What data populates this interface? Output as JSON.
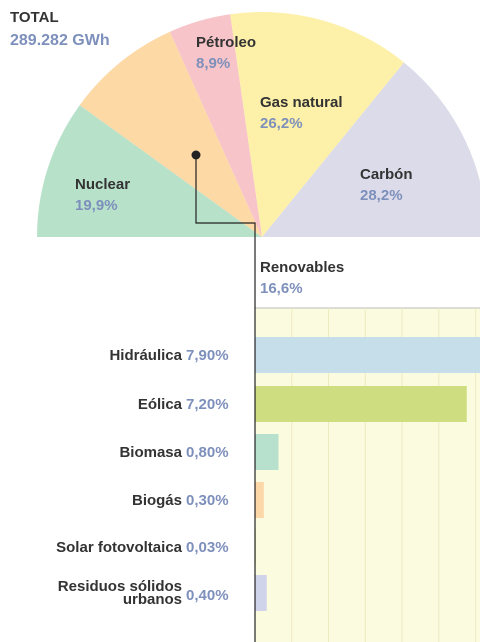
{
  "chart_data": [
    {
      "type": "pie",
      "title": "TOTAL",
      "subtitle": "289.282 GWh",
      "categories": [
        "Nuclear",
        "Renovables",
        "Pétroleo",
        "Gas natural",
        "Carbón"
      ],
      "values": [
        19.9,
        16.6,
        8.9,
        26.2,
        28.2
      ],
      "value_labels": [
        "19,9%",
        "16,6%",
        "8,9%",
        "26,2%",
        "28,2%"
      ],
      "colors": [
        "#b8e1ca",
        "#fdd9a6",
        "#f7c5c9",
        "#fdf0a8",
        "#dcdbe9"
      ]
    },
    {
      "type": "bar",
      "categories": [
        "Hidráulica",
        "Eólica",
        "Biomasa",
        "Biogás",
        "Solar fotovoltaica",
        "Residuos sólidos urbanos"
      ],
      "values": [
        7.9,
        7.2,
        0.8,
        0.3,
        0.03,
        0.4
      ],
      "value_labels": [
        "7,90%",
        "7,20%",
        "0,80%",
        "0,30%",
        "0,03%",
        "0,40%"
      ],
      "colors": [
        "#c6ddea",
        "#cddd80",
        "#b7e1cd",
        "#fcd7a8",
        "#e4e6a0",
        "#d0d4ea"
      ],
      "xlim": [
        0,
        7.65
      ],
      "xticks": [
        0,
        1.25,
        2.5,
        3.75,
        5,
        6.25,
        7.5
      ],
      "grid": true
    }
  ]
}
